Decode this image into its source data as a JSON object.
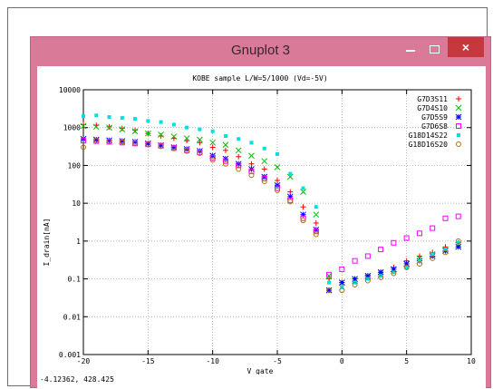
{
  "window": {
    "title": "Gnuplot 3",
    "close_label": "×",
    "status": "-4.12362,  428.425"
  },
  "colors": {
    "titlebar": "#d87a98",
    "close": "#c7383e"
  },
  "chart_data": {
    "type": "scatter",
    "title": "KOBE sample L/W=5/1000 (Vd=-5V)",
    "xlabel": "V_gate",
    "ylabel": "I_drain[nA]",
    "xlim": [
      -20,
      10
    ],
    "ylim": [
      0.001,
      10000
    ],
    "yscale": "log",
    "grid": true,
    "legend_position": "top-right",
    "x_ticks": [
      {
        "v": -20,
        "label": "-20"
      },
      {
        "v": -15,
        "label": "-15"
      },
      {
        "v": -10,
        "label": "-10"
      },
      {
        "v": -5,
        "label": "-5"
      },
      {
        "v": 0,
        "label": "0"
      },
      {
        "v": 5,
        "label": "5"
      },
      {
        "v": 10,
        "label": "10"
      }
    ],
    "y_ticks": [
      {
        "v": 0.001,
        "label": "0.001"
      },
      {
        "v": 0.01,
        "label": "0.01"
      },
      {
        "v": 0.1,
        "label": "0.1"
      },
      {
        "v": 1,
        "label": "1"
      },
      {
        "v": 10,
        "label": "10"
      },
      {
        "v": 100,
        "label": "100"
      },
      {
        "v": 1000,
        "label": "1000"
      },
      {
        "v": 10000,
        "label": "10000"
      }
    ],
    "x": [
      -20,
      -19,
      -18,
      -17,
      -16,
      -15,
      -14,
      -13,
      -12,
      -11,
      -10,
      -9,
      -8,
      -7,
      -6,
      -5,
      -4,
      -3,
      -2,
      -1,
      0,
      1,
      2,
      3,
      4,
      5,
      6,
      7,
      8,
      9
    ],
    "series": [
      {
        "name": "G7D3S11",
        "marker": "plus",
        "color": "#ff0000",
        "values": [
          1200,
          1150,
          1050,
          950,
          850,
          700,
          600,
          520,
          450,
          400,
          300,
          250,
          170,
          110,
          80,
          40,
          20,
          8,
          3,
          0.1,
          0.08,
          0.1,
          0.12,
          0.15,
          0.2,
          0.3,
          0.4,
          0.5,
          0.7,
          0.9
        ]
      },
      {
        "name": "G7D4S10",
        "marker": "x",
        "color": "#00c000",
        "values": [
          1100,
          1050,
          1000,
          900,
          800,
          700,
          650,
          580,
          520,
          480,
          400,
          350,
          250,
          180,
          130,
          90,
          50,
          20,
          5,
          0.12,
          0.06,
          0.09,
          0.11,
          0.13,
          0.18,
          0.25,
          0.35,
          0.45,
          0.6,
          0.8
        ]
      },
      {
        "name": "G7D5S9",
        "marker": "star",
        "color": "#0000ff",
        "values": [
          500,
          480,
          460,
          440,
          420,
          380,
          340,
          300,
          270,
          240,
          180,
          150,
          110,
          80,
          50,
          30,
          15,
          5,
          2,
          0.05,
          0.08,
          0.1,
          0.12,
          0.15,
          0.18,
          0.25,
          0.3,
          0.4,
          0.55,
          0.7
        ]
      },
      {
        "name": "G7D6S8",
        "marker": "square",
        "color": "#ff00ff",
        "values": [
          450,
          440,
          420,
          400,
          380,
          360,
          330,
          290,
          250,
          220,
          160,
          130,
          100,
          70,
          45,
          25,
          12,
          4,
          1.8,
          0.13,
          0.18,
          0.3,
          0.4,
          0.6,
          0.9,
          1.2,
          1.6,
          2.2,
          4,
          4.5
        ]
      },
      {
        "name": "G18D14S22",
        "marker": "filled-square",
        "color": "#00e0e0",
        "values": [
          2000,
          2100,
          1900,
          1800,
          1700,
          1500,
          1400,
          1200,
          1000,
          900,
          800,
          600,
          500,
          400,
          280,
          200,
          60,
          25,
          8,
          0.08,
          0.06,
          0.08,
          0.1,
          0.12,
          0.15,
          0.2,
          0.3,
          0.45,
          0.6,
          0.9
        ]
      },
      {
        "name": "G18D16S20",
        "marker": "circle",
        "color": "#b07010",
        "values": [
          300,
          460,
          440,
          420,
          390,
          360,
          320,
          280,
          240,
          210,
          140,
          110,
          80,
          55,
          38,
          22,
          11,
          3.5,
          1.5,
          0.05,
          0.05,
          0.07,
          0.09,
          0.11,
          0.14,
          0.2,
          0.25,
          0.35,
          0.5,
          1.0
        ]
      }
    ]
  }
}
